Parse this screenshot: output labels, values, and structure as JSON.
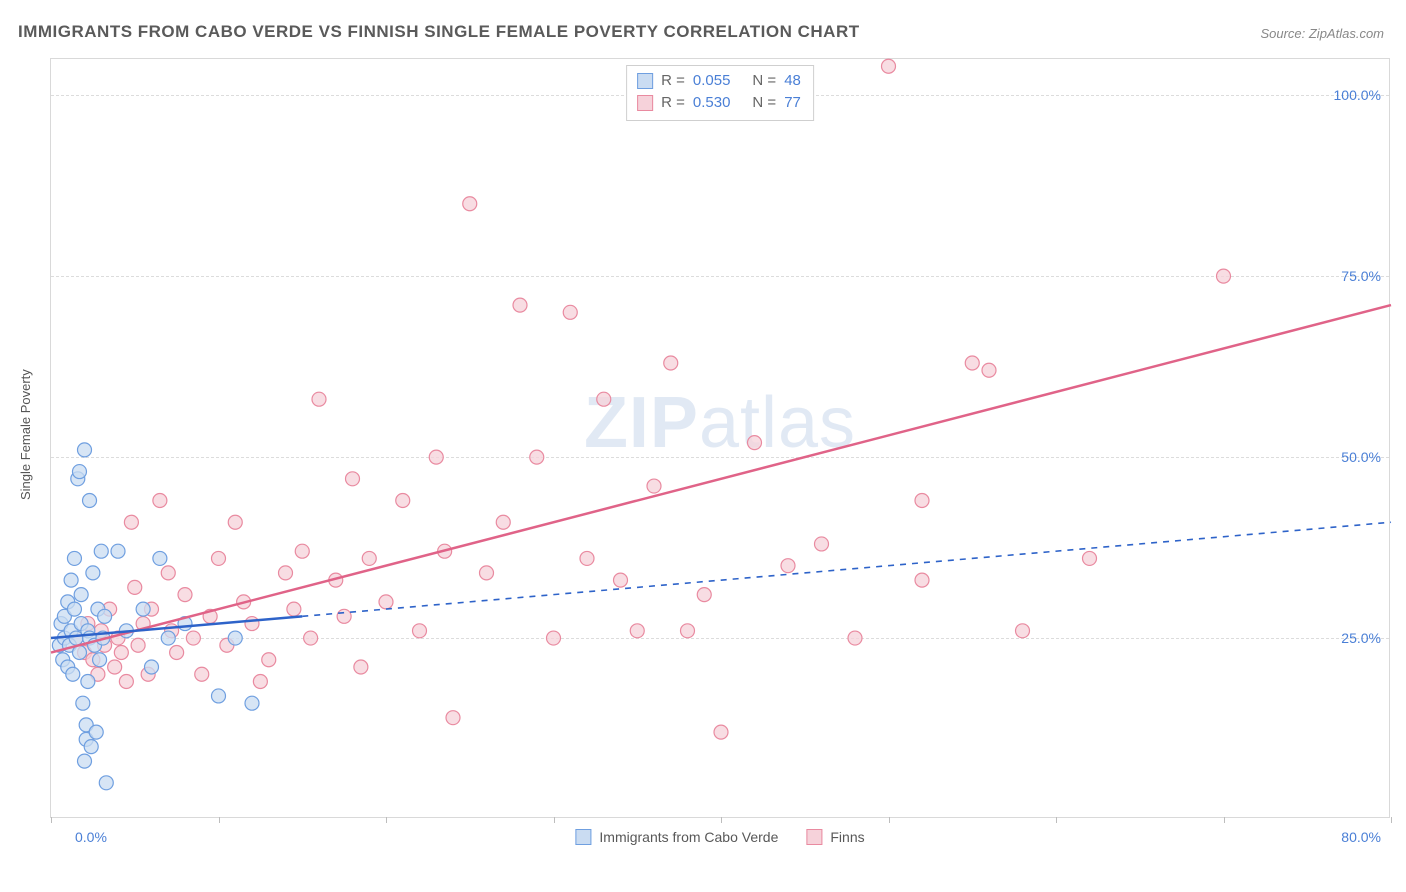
{
  "title": "IMMIGRANTS FROM CABO VERDE VS FINNISH SINGLE FEMALE POVERTY CORRELATION CHART",
  "source": "Source: ZipAtlas.com",
  "ylabel": "Single Female Poverty",
  "watermark_bold": "ZIP",
  "watermark_light": "atlas",
  "chart": {
    "type": "scatter-correlation",
    "background_color": "#ffffff",
    "border_color": "#d9d9d9",
    "grid_color": "#dcdcdc",
    "tick_color": "#bdbdbd",
    "label_color": "#4a7fd6",
    "text_color": "#5a5a5a",
    "xlim": [
      0,
      80
    ],
    "ylim": [
      0,
      105
    ],
    "xtick_positions": [
      0,
      10,
      20,
      30,
      40,
      50,
      60,
      70,
      80
    ],
    "yticks": [
      {
        "v": 25,
        "label": "25.0%"
      },
      {
        "v": 50,
        "label": "50.0%"
      },
      {
        "v": 75,
        "label": "75.0%"
      },
      {
        "v": 100,
        "label": "100.0%"
      }
    ],
    "xaxis_labels": {
      "min": "0.0%",
      "max": "80.0%"
    },
    "marker_radius": 7,
    "marker_stroke_width": 1.2,
    "series": {
      "a": {
        "name": "Immigrants from Cabo Verde",
        "fill": "#cadcf2",
        "stroke": "#6f9fe0",
        "line_color": "#2e63c9",
        "line_dash_extend": "6 6",
        "R": "0.055",
        "N": "48",
        "trend": {
          "x1": 0,
          "y1": 25,
          "x2": 80,
          "y2": 41,
          "solid_until_x": 15
        },
        "points": [
          [
            0.5,
            24
          ],
          [
            0.6,
            27
          ],
          [
            0.7,
            22
          ],
          [
            0.8,
            25
          ],
          [
            0.8,
            28
          ],
          [
            1.0,
            30
          ],
          [
            1.0,
            21
          ],
          [
            1.1,
            24
          ],
          [
            1.2,
            33
          ],
          [
            1.2,
            26
          ],
          [
            1.3,
            20
          ],
          [
            1.4,
            29
          ],
          [
            1.4,
            36
          ],
          [
            1.5,
            25
          ],
          [
            1.6,
            47
          ],
          [
            1.7,
            48
          ],
          [
            1.7,
            23
          ],
          [
            1.8,
            31
          ],
          [
            1.8,
            27
          ],
          [
            1.9,
            16
          ],
          [
            2.0,
            8
          ],
          [
            2.0,
            51
          ],
          [
            2.1,
            13
          ],
          [
            2.1,
            11
          ],
          [
            2.2,
            19
          ],
          [
            2.2,
            26
          ],
          [
            2.3,
            44
          ],
          [
            2.3,
            25
          ],
          [
            2.4,
            10
          ],
          [
            2.5,
            34
          ],
          [
            2.6,
            24
          ],
          [
            2.7,
            12
          ],
          [
            2.8,
            29
          ],
          [
            2.9,
            22
          ],
          [
            3.0,
            37
          ],
          [
            3.1,
            25
          ],
          [
            3.2,
            28
          ],
          [
            3.3,
            5
          ],
          [
            4.0,
            37
          ],
          [
            4.5,
            26
          ],
          [
            5.5,
            29
          ],
          [
            6.0,
            21
          ],
          [
            6.5,
            36
          ],
          [
            7.0,
            25
          ],
          [
            8.0,
            27
          ],
          [
            10.0,
            17
          ],
          [
            11.0,
            25
          ],
          [
            12.0,
            16
          ]
        ]
      },
      "b": {
        "name": "Finns",
        "fill": "#f6d2da",
        "stroke": "#e98aa0",
        "line_color": "#e06388",
        "R": "0.530",
        "N": "77",
        "trend": {
          "x1": 0,
          "y1": 23,
          "x2": 80,
          "y2": 71
        },
        "points": [
          [
            1.5,
            25
          ],
          [
            2.0,
            23
          ],
          [
            2.2,
            27
          ],
          [
            2.5,
            22
          ],
          [
            2.8,
            20
          ],
          [
            3.0,
            26
          ],
          [
            3.2,
            24
          ],
          [
            3.5,
            29
          ],
          [
            3.8,
            21
          ],
          [
            4.0,
            25
          ],
          [
            4.2,
            23
          ],
          [
            4.5,
            19
          ],
          [
            4.8,
            41
          ],
          [
            5.0,
            32
          ],
          [
            5.2,
            24
          ],
          [
            5.5,
            27
          ],
          [
            5.8,
            20
          ],
          [
            6.0,
            29
          ],
          [
            6.5,
            44
          ],
          [
            7.0,
            34
          ],
          [
            7.2,
            26
          ],
          [
            7.5,
            23
          ],
          [
            8.0,
            31
          ],
          [
            8.5,
            25
          ],
          [
            9.0,
            20
          ],
          [
            9.5,
            28
          ],
          [
            10.0,
            36
          ],
          [
            10.5,
            24
          ],
          [
            11.0,
            41
          ],
          [
            11.5,
            30
          ],
          [
            12.0,
            27
          ],
          [
            12.5,
            19
          ],
          [
            13.0,
            22
          ],
          [
            14.0,
            34
          ],
          [
            14.5,
            29
          ],
          [
            15.0,
            37
          ],
          [
            15.5,
            25
          ],
          [
            16.0,
            58
          ],
          [
            17.0,
            33
          ],
          [
            17.5,
            28
          ],
          [
            18.0,
            47
          ],
          [
            18.5,
            21
          ],
          [
            19.0,
            36
          ],
          [
            20.0,
            30
          ],
          [
            21.0,
            44
          ],
          [
            22.0,
            26
          ],
          [
            23.0,
            50
          ],
          [
            23.5,
            37
          ],
          [
            24.0,
            14
          ],
          [
            25.0,
            85
          ],
          [
            26.0,
            34
          ],
          [
            27.0,
            41
          ],
          [
            28.0,
            71
          ],
          [
            29.0,
            50
          ],
          [
            30.0,
            25
          ],
          [
            31.0,
            70
          ],
          [
            32.0,
            36
          ],
          [
            33.0,
            58
          ],
          [
            34.0,
            33
          ],
          [
            35.0,
            26
          ],
          [
            36.0,
            46
          ],
          [
            37.0,
            63
          ],
          [
            38.0,
            26
          ],
          [
            39.0,
            31
          ],
          [
            40.0,
            12
          ],
          [
            42.0,
            52
          ],
          [
            44.0,
            35
          ],
          [
            46.0,
            38
          ],
          [
            48.0,
            25
          ],
          [
            50.0,
            104
          ],
          [
            52.0,
            44
          ],
          [
            55.0,
            63
          ],
          [
            56.0,
            62
          ],
          [
            58.0,
            26
          ],
          [
            62.0,
            36
          ],
          [
            70.0,
            75
          ],
          [
            52.0,
            33
          ]
        ]
      }
    }
  }
}
